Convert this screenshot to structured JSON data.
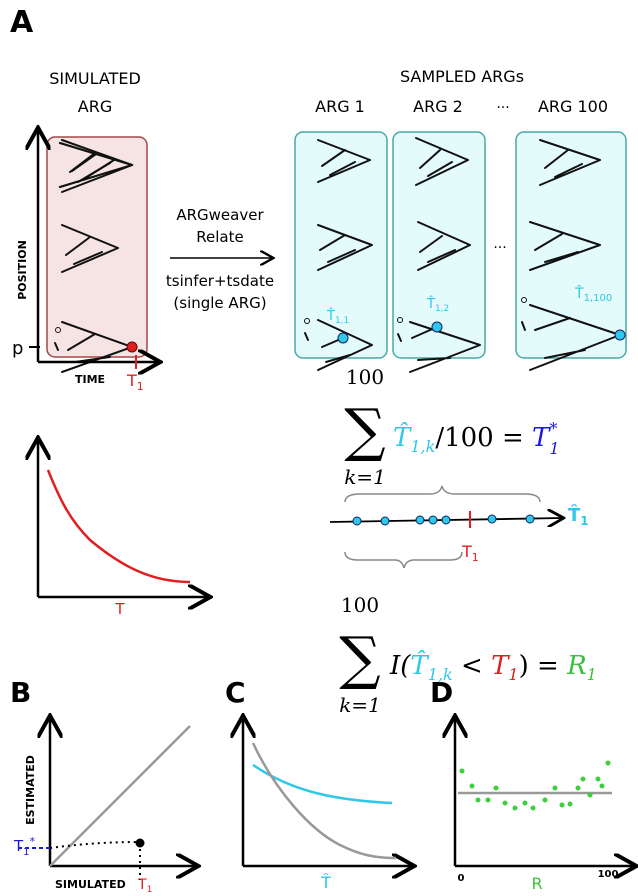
{
  "panel_a": {
    "label": "A",
    "simulated_title": [
      "SIMULATED",
      "ARG"
    ],
    "sampled_title": "SAMPLED ARGs",
    "arg_labels": [
      "ARG 1",
      "ARG 2",
      "ARG 100"
    ],
    "header_ellipsis": "···",
    "box_ellipsis": "···",
    "y_axis": "POSITION",
    "x_axis": "TIME",
    "time_marker": {
      "symbol": "T",
      "sub": "1"
    },
    "position_marker": "p",
    "methods": [
      "ARGweaver",
      "Relate",
      "tsinfer+tsdate",
      "(single ARG)"
    ],
    "node_labels": [
      {
        "symbol": "T̂",
        "sub": "1,1"
      },
      {
        "symbol": "T̂",
        "sub": "1,2"
      },
      {
        "symbol": "T̂",
        "sub": "1,100"
      }
    ],
    "curve_label": "T",
    "mean_formula": {
      "upper": "100",
      "sum": "∑",
      "lower": "k=1",
      "estimate": "T̂",
      "estimate_sub": "1,k",
      "middle": "/100 = ",
      "result": "T",
      "result_sup": "*",
      "result_sub": "1"
    },
    "number_line": {
      "estimate": "T̂",
      "estimate_sub": "1",
      "truth": "T",
      "truth_sub": "1"
    },
    "rank_formula": {
      "upper": "100",
      "sum": "∑",
      "lower": "k=1",
      "open": "I(",
      "estimate": "T̂",
      "estimate_sub": "1,k",
      "less": " < ",
      "truth": "T",
      "truth_sub": "1",
      "close": ") = ",
      "result": "R",
      "result_sub": "1"
    }
  },
  "panel_b": {
    "label": "B",
    "y_axis": "ESTIMATED",
    "x_axis": "SIMULATED",
    "y_marker": {
      "symbol": "T",
      "sub": "1",
      "sup": "*"
    },
    "x_marker": {
      "symbol": "T",
      "sub": "1"
    }
  },
  "panel_c": {
    "label": "C",
    "x_axis": "T̂"
  },
  "panel_d": {
    "label": "D",
    "x_start": "0",
    "x_axis": "R",
    "x_end": "100"
  }
}
